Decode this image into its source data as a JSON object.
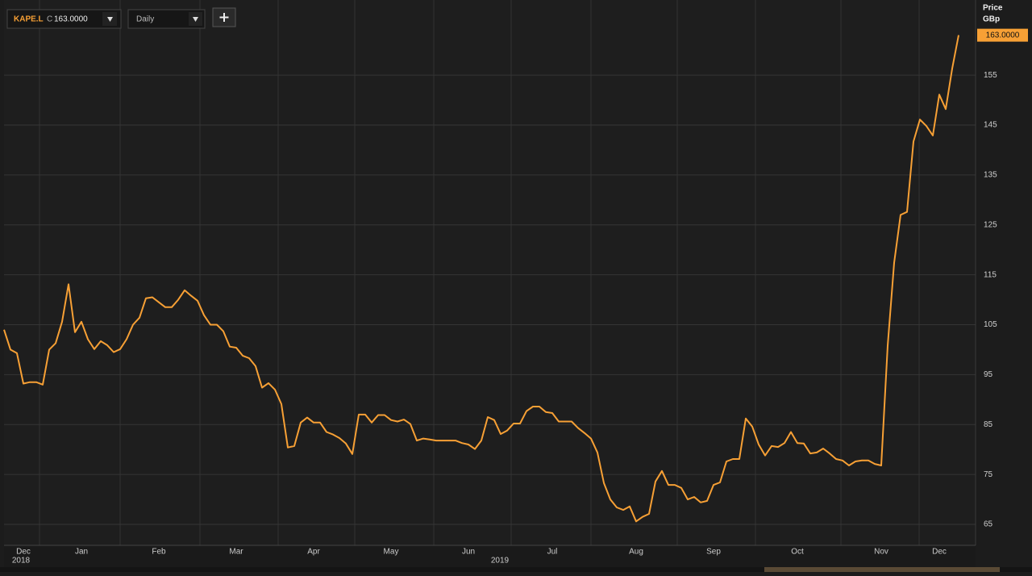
{
  "toolbar": {
    "ric": "KAPE.L",
    "field": "C",
    "interval": "Daily"
  },
  "chart_data": {
    "type": "line",
    "y_axis_label": "Price",
    "y_axis_unit": "GBp",
    "last_price_label": "163.0000",
    "year_labels": [
      "2018",
      "2019"
    ],
    "categories": [
      null,
      null,
      null,
      "Dec",
      null,
      null,
      null,
      null,
      null,
      null,
      null,
      null,
      "Jan",
      null,
      null,
      null,
      null,
      null,
      null,
      null,
      null,
      null,
      null,
      null,
      "Feb",
      null,
      null,
      null,
      null,
      null,
      null,
      null,
      null,
      null,
      null,
      null,
      "Mar",
      null,
      null,
      null,
      null,
      null,
      null,
      null,
      null,
      null,
      null,
      null,
      "Apr",
      null,
      null,
      null,
      null,
      null,
      null,
      null,
      null,
      null,
      null,
      null,
      "May",
      null,
      null,
      null,
      null,
      null,
      null,
      null,
      null,
      null,
      null,
      null,
      "Jun",
      null,
      null,
      null,
      null,
      null,
      null,
      null,
      null,
      null,
      null,
      null,
      null,
      "Jul",
      null,
      null,
      null,
      null,
      null,
      null,
      null,
      null,
      null,
      null,
      null,
      null,
      "Aug",
      null,
      null,
      null,
      null,
      null,
      null,
      null,
      null,
      null,
      null,
      null,
      "Sep",
      null,
      null,
      null,
      null,
      null,
      null,
      null,
      null,
      null,
      null,
      null,
      null,
      "Oct",
      null,
      null,
      null,
      null,
      null,
      null,
      null,
      null,
      null,
      null,
      null,
      null,
      "Nov",
      null,
      null,
      null,
      null,
      null,
      null,
      null,
      null,
      "Dec",
      null,
      null,
      null
    ],
    "series": [
      {
        "name": "KAPE.L",
        "color": "#f7a035",
        "values": [
          104.0,
          100.0,
          99.3,
          93.2,
          93.5,
          93.5,
          93.0,
          100.0,
          101.3,
          105.6,
          113.1,
          103.5,
          105.6,
          102.1,
          100.1,
          101.7,
          100.9,
          99.5,
          100.1,
          102.1,
          105.0,
          106.4,
          110.3,
          110.5,
          109.5,
          108.5,
          108.5,
          110.0,
          111.9,
          110.8,
          109.8,
          106.9,
          105.0,
          105.0,
          103.7,
          100.6,
          100.4,
          98.8,
          98.3,
          96.7,
          92.4,
          93.3,
          92.0,
          89.1,
          80.4,
          80.7,
          85.4,
          86.4,
          85.4,
          85.4,
          83.5,
          83.0,
          82.3,
          81.2,
          79.1,
          87.0,
          87.0,
          85.4,
          86.9,
          86.9,
          85.9,
          85.6,
          86.0,
          85.1,
          81.8,
          82.2,
          82.0,
          81.8,
          81.8,
          81.8,
          81.8,
          81.3,
          81.0,
          80.1,
          81.8,
          86.5,
          85.9,
          83.1,
          83.8,
          85.2,
          85.2,
          87.7,
          88.6,
          88.6,
          87.5,
          87.3,
          85.6,
          85.6,
          85.6,
          84.3,
          83.3,
          82.2,
          79.4,
          73.3,
          70.0,
          68.4,
          67.9,
          68.6,
          65.6,
          66.5,
          67.1,
          73.6,
          75.7,
          72.9,
          72.9,
          72.3,
          70.0,
          70.5,
          69.4,
          69.7,
          72.9,
          73.4,
          77.6,
          78.1,
          78.1,
          86.2,
          84.6,
          81.0,
          78.8,
          80.7,
          80.5,
          81.3,
          83.5,
          81.3,
          81.2,
          79.2,
          79.4,
          80.2,
          79.2,
          78.1,
          77.8,
          76.8,
          77.6,
          77.8,
          77.8,
          77.1,
          76.8,
          100.8,
          117.4,
          127.0,
          127.6,
          141.7,
          146.1,
          144.8,
          142.9,
          151.1,
          148.2,
          156.3,
          163
        ]
      }
    ],
    "ylim": [
      60.8,
      170.05
    ],
    "yticks": [
      65,
      75,
      85,
      95,
      105,
      115,
      125,
      135,
      145,
      155
    ],
    "grid": true
  }
}
